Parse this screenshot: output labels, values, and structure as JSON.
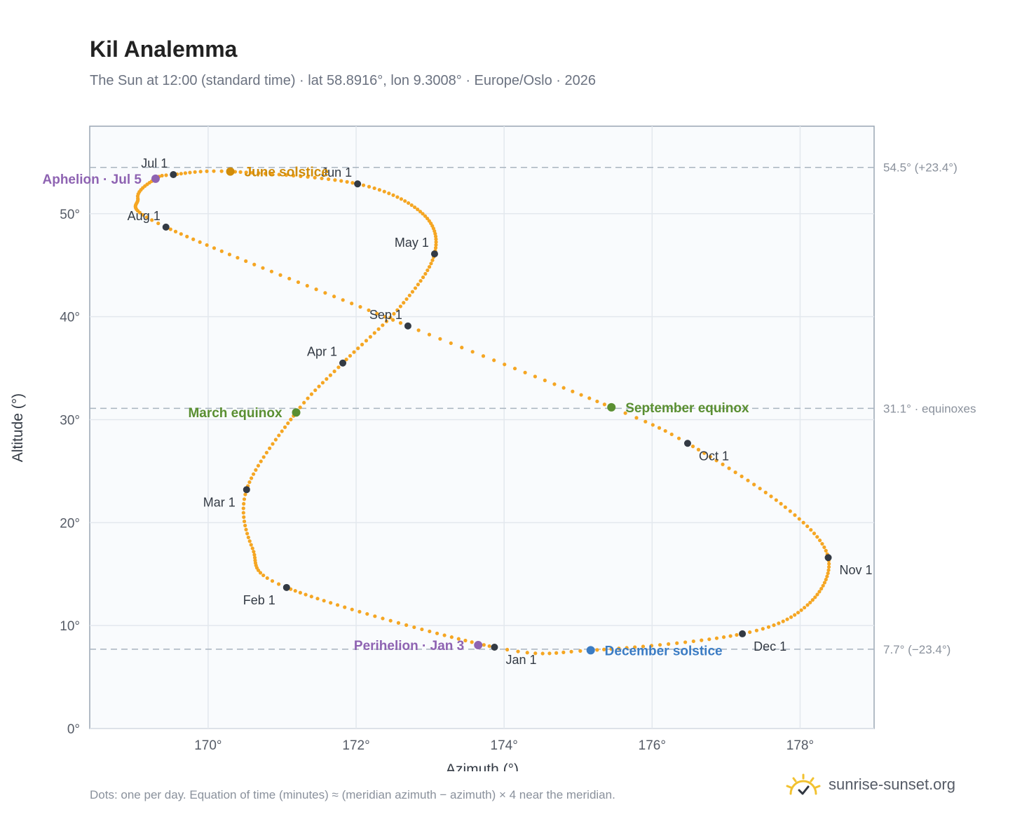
{
  "header": {
    "title": "Kil Analemma",
    "subtitle": "The Sun at 12:00 (standard time) · lat 58.8916°, lon 9.3008° · Europe/Oslo · 2026"
  },
  "footer": {
    "note": "Dots: one per day. Equation of time (minutes) ≈ (meridian azimuth − azimuth) × 4 near the meridian.",
    "brand": "sunrise-sunset.org"
  },
  "chart_data": {
    "type": "scatter",
    "xlabel": "Azimuth (°)",
    "ylabel": "Altitude (°)",
    "xlim": [
      168.4,
      179.0
    ],
    "ylim": [
      0,
      58.5
    ],
    "xticks": [
      170,
      172,
      174,
      176,
      178
    ],
    "xtick_labels": [
      "170°",
      "172°",
      "174°",
      "176°",
      "178°"
    ],
    "yticks": [
      0,
      10,
      20,
      30,
      40,
      50
    ],
    "ytick_labels": [
      "0°",
      "10°",
      "20°",
      "30°",
      "40°",
      "50°"
    ],
    "grid": true,
    "colors": {
      "path": "#f5a623",
      "month": "#333a44",
      "equinox": "#5a8f32",
      "june_solstice": "#d08c0a",
      "december_solstice": "#3b7cc4",
      "apsis": "#8e63b2",
      "reference": "#a9b4c0"
    },
    "reference_lines": [
      {
        "y": 54.5,
        "label": "54.5° (+23.4°)"
      },
      {
        "y": 31.1,
        "label": "31.1° · equinoxes"
      },
      {
        "y": 7.7,
        "label": "7.7° (−23.4°)"
      }
    ],
    "month_points": [
      {
        "label": "Jan 1",
        "x": 173.87,
        "y": 7.9,
        "pos": "below-right"
      },
      {
        "label": "Feb 1",
        "x": 171.06,
        "y": 13.7,
        "pos": "below-left"
      },
      {
        "label": "Mar 1",
        "x": 170.52,
        "y": 23.2,
        "pos": "below-left"
      },
      {
        "label": "Apr 1",
        "x": 171.82,
        "y": 35.5,
        "pos": "above-left"
      },
      {
        "label": "May 1",
        "x": 173.06,
        "y": 46.1,
        "pos": "above-left"
      },
      {
        "label": "Jun 1",
        "x": 172.02,
        "y": 52.9,
        "pos": "above-left"
      },
      {
        "label": "Jul 1",
        "x": 169.53,
        "y": 53.8,
        "pos": "above-left"
      },
      {
        "label": "Aug 1",
        "x": 169.43,
        "y": 48.7,
        "pos": "above-left"
      },
      {
        "label": "Sep 1",
        "x": 172.7,
        "y": 39.1,
        "pos": "above-left"
      },
      {
        "label": "Oct 1",
        "x": 176.48,
        "y": 27.7,
        "pos": "below-right"
      },
      {
        "label": "Nov 1",
        "x": 178.38,
        "y": 16.6,
        "pos": "below-right"
      },
      {
        "label": "Dec 1",
        "x": 177.22,
        "y": 9.2,
        "pos": "below-right"
      }
    ],
    "events": [
      {
        "label": "March equinox",
        "x": 171.19,
        "y": 30.7,
        "kind": "equinox",
        "pos": "left"
      },
      {
        "label": "June solstice",
        "x": 170.3,
        "y": 54.1,
        "kind": "june_solstice",
        "pos": "right"
      },
      {
        "label": "September equinox",
        "x": 175.45,
        "y": 31.2,
        "kind": "equinox",
        "pos": "right"
      },
      {
        "label": "December solstice",
        "x": 175.17,
        "y": 7.6,
        "kind": "december_solstice",
        "pos": "right"
      },
      {
        "label": "Perihelion · Jan 3",
        "x": 173.65,
        "y": 8.1,
        "kind": "apsis",
        "pos": "left"
      },
      {
        "label": "Aphelion · Jul 5",
        "x": 169.29,
        "y": 53.4,
        "kind": "apsis",
        "pos": "left"
      }
    ],
    "path_anchors": [
      {
        "day": 0,
        "x": 173.87,
        "y": 7.9
      },
      {
        "day": 31,
        "x": 171.06,
        "y": 13.7
      },
      {
        "day": 45,
        "x": 170.6,
        "y": 17.5
      },
      {
        "day": 59,
        "x": 170.52,
        "y": 23.2
      },
      {
        "day": 78,
        "x": 171.19,
        "y": 30.7
      },
      {
        "day": 90,
        "x": 171.82,
        "y": 35.5
      },
      {
        "day": 105,
        "x": 172.6,
        "y": 41.0
      },
      {
        "day": 120,
        "x": 173.06,
        "y": 46.1
      },
      {
        "day": 135,
        "x": 172.9,
        "y": 50.0
      },
      {
        "day": 151,
        "x": 172.02,
        "y": 52.9
      },
      {
        "day": 171,
        "x": 170.3,
        "y": 54.1
      },
      {
        "day": 181,
        "x": 169.53,
        "y": 53.8
      },
      {
        "day": 185,
        "x": 169.29,
        "y": 53.4
      },
      {
        "day": 196,
        "x": 169.05,
        "y": 51.5
      },
      {
        "day": 212,
        "x": 169.43,
        "y": 48.7
      },
      {
        "day": 243,
        "x": 172.7,
        "y": 39.1
      },
      {
        "day": 264,
        "x": 175.45,
        "y": 31.2
      },
      {
        "day": 273,
        "x": 176.48,
        "y": 27.7
      },
      {
        "day": 290,
        "x": 177.8,
        "y": 21.5
      },
      {
        "day": 304,
        "x": 178.38,
        "y": 16.6
      },
      {
        "day": 320,
        "x": 178.1,
        "y": 12.0
      },
      {
        "day": 334,
        "x": 177.22,
        "y": 9.2
      },
      {
        "day": 354,
        "x": 175.17,
        "y": 7.6
      },
      {
        "day": 365,
        "x": 173.87,
        "y": 7.9
      }
    ]
  }
}
